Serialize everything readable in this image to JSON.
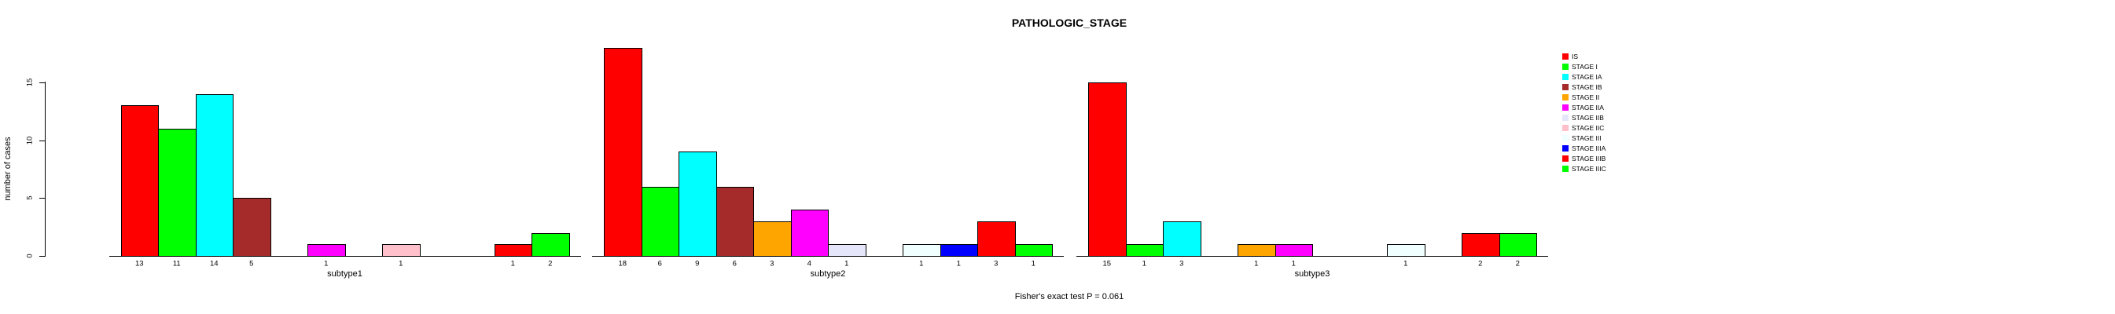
{
  "header": {
    "title": "PATHOLOGIC_STAGE"
  },
  "footer": {
    "annotation": "Fisher's exact test P = 0.061"
  },
  "chart_data": {
    "type": "bar",
    "title": "PATHOLOGIC_STAGE",
    "xlabel": "",
    "ylabel": "number of cases",
    "yticks": [
      "0",
      "5",
      "10",
      "15"
    ],
    "ylim": [
      0,
      18.3
    ],
    "grid": false,
    "legend_position": "right",
    "annotation": "Fisher's exact test P = 0.061",
    "bar_value_labels_shown": true,
    "zero_value_bars_hidden": true,
    "categories": [
      "subtype1",
      "subtype2",
      "subtype3"
    ],
    "series": [
      {
        "name": "IS",
        "color": "#FF0000",
        "values": [
          13,
          18,
          15
        ]
      },
      {
        "name": "STAGE I",
        "color": "#00FF00",
        "values": [
          11,
          6,
          1
        ]
      },
      {
        "name": "STAGE IA",
        "color": "#00FFFF",
        "values": [
          14,
          9,
          3
        ]
      },
      {
        "name": "STAGE IB",
        "color": "#A52A2A",
        "values": [
          5,
          6,
          0
        ]
      },
      {
        "name": "STAGE II",
        "color": "#FFA500",
        "values": [
          0,
          3,
          1
        ]
      },
      {
        "name": "STAGE IIA",
        "color": "#FF00FF",
        "values": [
          1,
          4,
          1
        ]
      },
      {
        "name": "STAGE IIB",
        "color": "#E6E6FA",
        "values": [
          0,
          1,
          0
        ]
      },
      {
        "name": "STAGE IIC",
        "color": "#FFC0CB",
        "values": [
          1,
          0,
          0
        ]
      },
      {
        "name": "STAGE III",
        "color": "#F0FFFF",
        "values": [
          0,
          1,
          1
        ]
      },
      {
        "name": "STAGE IIIA",
        "color": "#0000FF",
        "values": [
          0,
          1,
          0
        ]
      },
      {
        "name": "STAGE IIIB",
        "color": "#FF0000",
        "values": [
          1,
          3,
          2
        ]
      },
      {
        "name": "STAGE IIIC",
        "color": "#00FF00",
        "values": [
          2,
          1,
          2
        ]
      }
    ]
  }
}
